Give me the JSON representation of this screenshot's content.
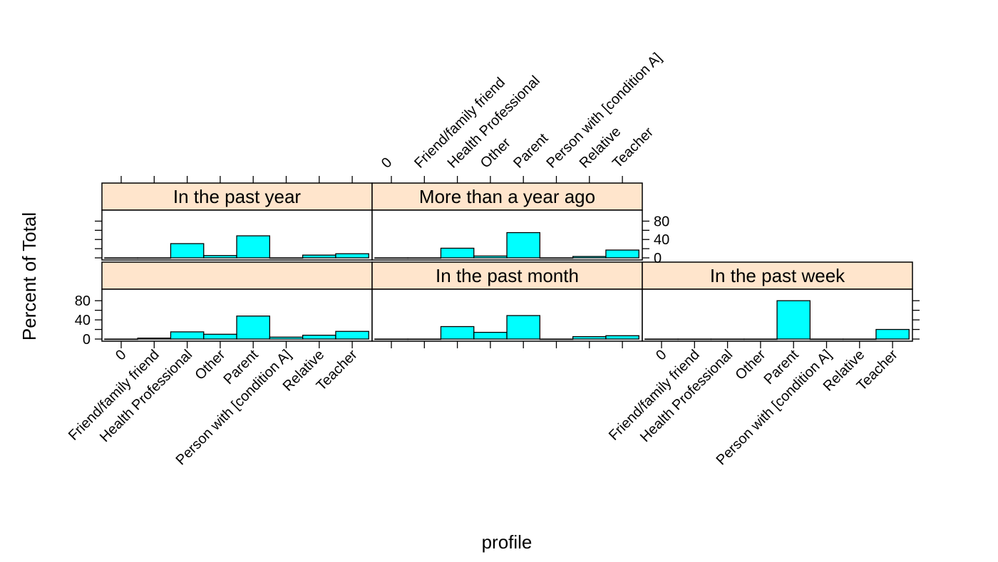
{
  "chart_data": {
    "type": "bar",
    "xlabel": "profile",
    "ylabel": "Percent of Total",
    "ylim": [
      0,
      100
    ],
    "yticks": [
      0,
      40,
      80
    ],
    "grid": false,
    "categories": [
      "0",
      "Friend/family friend",
      "Health Professional",
      "Other",
      "Parent",
      "Person with [condition A]",
      "Relative",
      "Teacher"
    ],
    "colors": {
      "bar": "#00ffff",
      "strip": "#ffe5cc",
      "stroke": "#000000"
    },
    "panels": [
      {
        "name": "",
        "values": [
          0,
          2,
          15,
          10,
          48,
          4,
          8,
          16
        ]
      },
      {
        "name": "In the past month",
        "values": [
          0,
          0,
          26,
          14,
          49,
          0,
          5,
          7
        ]
      },
      {
        "name": "In the past week",
        "values": [
          0,
          0,
          0,
          0,
          80,
          0,
          0,
          20
        ]
      },
      {
        "name": "In the past year",
        "values": [
          0,
          0,
          31,
          5,
          48,
          0,
          6,
          9
        ]
      },
      {
        "name": "More than a year ago",
        "values": [
          0,
          0,
          21,
          4,
          55,
          0,
          3,
          17
        ]
      }
    ]
  }
}
